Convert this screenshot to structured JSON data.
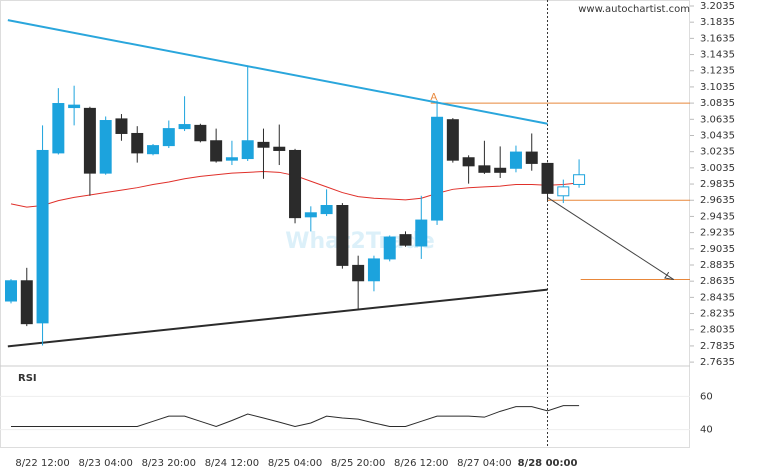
{
  "chart_data": [
    {
      "type": "candlestick",
      "source": "www.autochartist.com",
      "watermark": "What2Trade",
      "categories": [
        null,
        null,
        "8/22 12:00",
        null,
        null,
        null,
        "8/23 04:00",
        null,
        null,
        null,
        "8/23 20:00",
        null,
        null,
        null,
        "8/24 12:00",
        null,
        null,
        null,
        "8/25 04:00",
        null,
        null,
        null,
        "8/25 20:00",
        null,
        null,
        null,
        "8/26 12:00",
        null,
        null,
        null,
        "8/27 04:00",
        null,
        null,
        null,
        "8/28 00:00",
        null,
        null
      ],
      "open": [
        2.839,
        2.864,
        2.812,
        3.022,
        3.078,
        3.077,
        2.997,
        3.064,
        3.046,
        3.021,
        3.031,
        3.052,
        3.056,
        3.037,
        3.013,
        3.015,
        3.035,
        3.029,
        3.025,
        2.943,
        2.947,
        2.957,
        2.883,
        2.864,
        2.891,
        2.921,
        2.907,
        2.939,
        3.063,
        3.016,
        3.006,
        3.003,
        3.003,
        3.023,
        3.009,
        2.969,
        2.983
      ],
      "high": [
        2.866,
        2.88,
        3.056,
        3.102,
        3.105,
        3.079,
        3.067,
        3.07,
        3.055,
        3.033,
        3.062,
        3.092,
        3.058,
        3.052,
        3.037,
        3.13,
        3.052,
        3.057,
        3.027,
        2.956,
        2.977,
        2.96,
        2.895,
        2.895,
        2.92,
        2.925,
        2.969,
        3.087,
        3.065,
        3.019,
        3.037,
        3.03,
        3.031,
        3.046,
        3.01,
        2.989,
        3.014
      ],
      "low": [
        2.836,
        2.808,
        2.784,
        3.02,
        3.056,
        2.969,
        2.995,
        3.037,
        3.01,
        3.019,
        3.028,
        3.049,
        3.035,
        3.01,
        3.007,
        3.012,
        2.99,
        3.007,
        2.935,
        2.925,
        2.944,
        2.879,
        2.829,
        2.851,
        2.888,
        2.906,
        2.891,
        2.933,
        3.01,
        2.984,
        2.996,
        2.991,
        2.998,
        3.0,
        2.963,
        2.96,
        2.979
      ],
      "close": [
        2.864,
        2.811,
        3.025,
        3.083,
        3.081,
        2.997,
        3.062,
        3.046,
        3.022,
        3.031,
        3.052,
        3.057,
        3.037,
        3.012,
        3.016,
        3.037,
        3.029,
        3.025,
        2.942,
        2.948,
        2.957,
        2.883,
        2.864,
        2.891,
        2.918,
        2.908,
        2.939,
        3.066,
        3.013,
        3.006,
        2.998,
        2.998,
        3.023,
        3.009,
        2.972,
        2.98,
        2.995
      ],
      "up_color": "#1ca3dd",
      "down_color": "#2b2b2b",
      "current_index": 34,
      "moving_average": {
        "color": "#e0302a",
        "values": [
          2.959,
          2.955,
          2.957,
          2.963,
          2.967,
          2.97,
          2.973,
          2.976,
          2.979,
          2.983,
          2.986,
          2.99,
          2.993,
          2.995,
          2.997,
          2.998,
          2.999,
          2.998,
          2.994,
          2.987,
          2.98,
          2.973,
          2.968,
          2.966,
          2.965,
          2.964,
          2.966,
          2.972,
          2.977,
          2.979,
          2.98,
          2.981,
          2.983,
          2.983,
          2.982,
          2.983,
          2.985
        ]
      },
      "trendlines": [
        {
          "color": "#2aa6dc",
          "x": [
            -0.2,
            34
          ],
          "values": [
            3.186,
            3.058
          ]
        },
        {
          "color": "#2b2b2b",
          "x": [
            -0.2,
            34
          ],
          "values": [
            2.783,
            2.853
          ]
        }
      ],
      "levels": [
        {
          "value": 3.0835,
          "start": 26.6,
          "label": "A"
        },
        {
          "value": 2.9635,
          "start": 34
        },
        {
          "value": 2.8655,
          "start": 36.1
        }
      ],
      "level_color": "#e8873a",
      "arrow": {
        "x": [
          34,
          42
        ],
        "values": [
          2.967,
          2.8655
        ]
      },
      "ylim": [
        2.7587,
        3.2109
      ],
      "yticks": [
        3.2035,
        3.1835,
        3.1635,
        3.1435,
        3.1235,
        3.1035,
        3.0835,
        3.0635,
        3.0435,
        3.0235,
        3.0035,
        2.9835,
        2.9635,
        2.9435,
        2.9235,
        2.9035,
        2.8835,
        2.8635,
        2.8435,
        2.8235,
        2.8035,
        2.7835,
        2.7635
      ]
    },
    {
      "type": "line",
      "title": "RSI",
      "color": "#2b2b2b",
      "values": [
        41.9,
        41.9,
        41.9,
        41.9,
        41.9,
        41.9,
        41.9,
        41.9,
        41.9,
        45,
        48.1,
        48.1,
        45,
        41.9,
        45.5,
        49.4,
        47,
        44.5,
        41.9,
        44,
        48.1,
        47,
        46.3,
        44,
        41.9,
        41.9,
        45,
        48.1,
        48.1,
        48.1,
        47.5,
        51,
        53.8,
        53.8,
        51.3,
        54.4,
        54.4
      ],
      "ylim": [
        29,
        77
      ],
      "yticks": [
        40,
        60
      ]
    }
  ]
}
